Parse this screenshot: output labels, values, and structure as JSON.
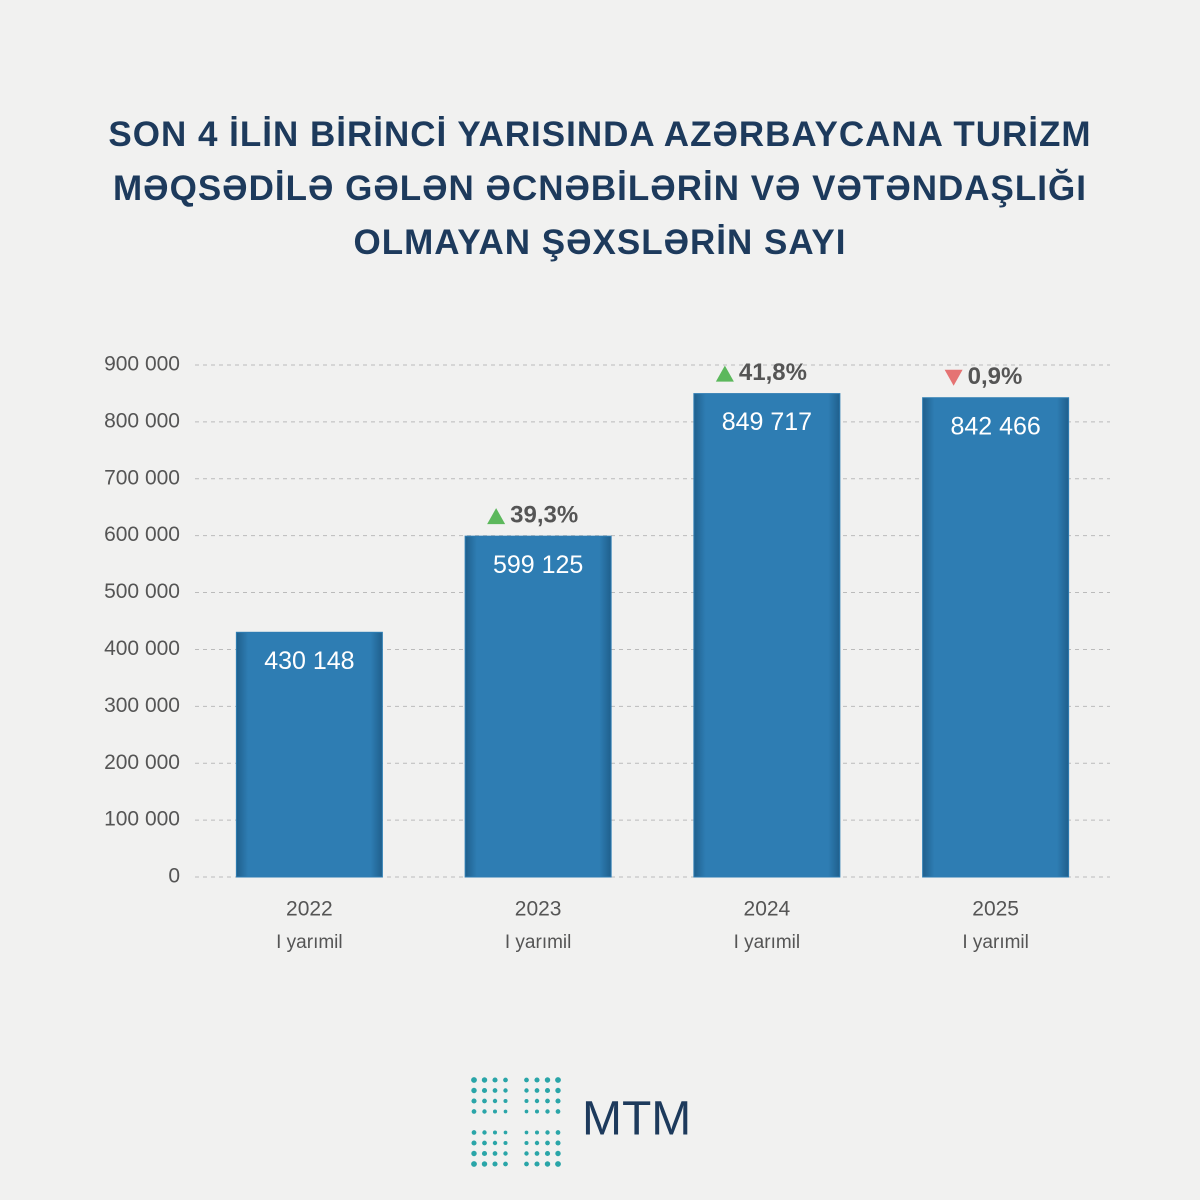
{
  "chart_data": {
    "type": "bar",
    "title": "SON 4 İLİN BİRİNCİ YARISINDA AZƏRBAYCANA TURİZM MƏQSƏDİLƏ GƏLƏN ƏCNƏBİLƏRİN VƏ VƏTƏNDAŞLIĞI OLMAYAN ŞƏXSLƏRİN SAYI",
    "categories": [
      "2022",
      "2023",
      "2024",
      "2025"
    ],
    "category_note": "I yarımil",
    "values": [
      430148,
      599125,
      849717,
      842466
    ],
    "value_labels": [
      "430 148",
      "599 125",
      "849 717",
      "842 466"
    ],
    "change_values": [
      null,
      39.3,
      41.8,
      -0.9
    ],
    "change_labels": [
      null,
      "39,3%",
      "41,8%",
      "0,9%"
    ],
    "up_color": "#5cb85c",
    "down_color": "#e57373",
    "color": "#2e7db3",
    "ylim": [
      0,
      900000
    ],
    "yticks": [
      {
        "value": 0,
        "label": "0"
      },
      {
        "value": 100000,
        "label": "100 000"
      },
      {
        "value": 200000,
        "label": "200 000"
      },
      {
        "value": 300000,
        "label": "300 000"
      },
      {
        "value": 400000,
        "label": "400 000"
      },
      {
        "value": 500000,
        "label": "500 000"
      },
      {
        "value": 600000,
        "label": "600 000"
      },
      {
        "value": 700000,
        "label": "700 000"
      },
      {
        "value": 800000,
        "label": "800 000"
      },
      {
        "value": 900000,
        "label": "900 000"
      }
    ],
    "grid": true,
    "logo_text": "MTM"
  }
}
